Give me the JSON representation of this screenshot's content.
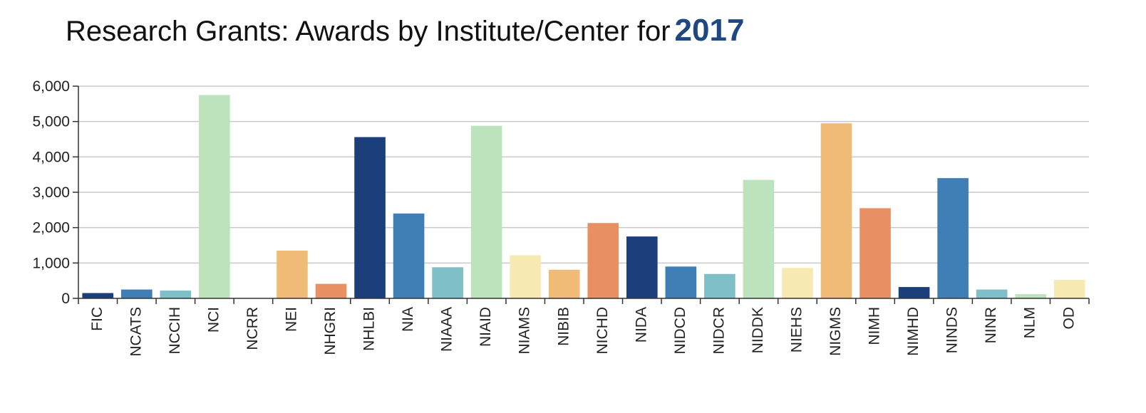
{
  "header": {
    "title": "Research Grants: Awards by Institute/Center for",
    "year": "2017"
  },
  "chart_data": {
    "type": "bar",
    "title": "Research Grants: Awards by Institute/Center for 2017",
    "xlabel": "",
    "ylabel": "",
    "ylim": [
      0,
      6000
    ],
    "yticks": [
      "0",
      "1,000",
      "2,000",
      "3,000",
      "4,000",
      "5,000",
      "6,000"
    ],
    "grid": true,
    "categories": [
      "FIC",
      "NCATS",
      "NCCIH",
      "NCI",
      "NCRR",
      "NEI",
      "NHGRI",
      "NHLBI",
      "NIA",
      "NIAAA",
      "NIAID",
      "NIAMS",
      "NIBIB",
      "NICHD",
      "NIDA",
      "NIDCD",
      "NIDCR",
      "NIDDK",
      "NIEHS",
      "NIGMS",
      "NIMH",
      "NIMHD",
      "NINDS",
      "NINR",
      "NLM",
      "OD"
    ],
    "values": [
      150,
      250,
      220,
      5750,
      0,
      1350,
      410,
      4560,
      2400,
      880,
      4880,
      1220,
      810,
      2130,
      1750,
      900,
      690,
      3350,
      860,
      4950,
      2550,
      320,
      3400,
      250,
      120,
      520
    ],
    "colors": [
      "#1b3f7a",
      "#3f7fb5",
      "#7fbfc8",
      "#bde3bd",
      "#7fbfc8",
      "#f0bb77",
      "#e89063",
      "#1b3f7a",
      "#3f7fb5",
      "#7fbfc8",
      "#bde3bd",
      "#f7e9b2",
      "#f0bb77",
      "#e89063",
      "#1b3f7a",
      "#3f7fb5",
      "#7fbfc8",
      "#bde3bd",
      "#f7e9b2",
      "#f0bb77",
      "#e89063",
      "#1b3f7a",
      "#3f7fb5",
      "#7fbfc8",
      "#bde3bd",
      "#f7e9b2"
    ]
  }
}
